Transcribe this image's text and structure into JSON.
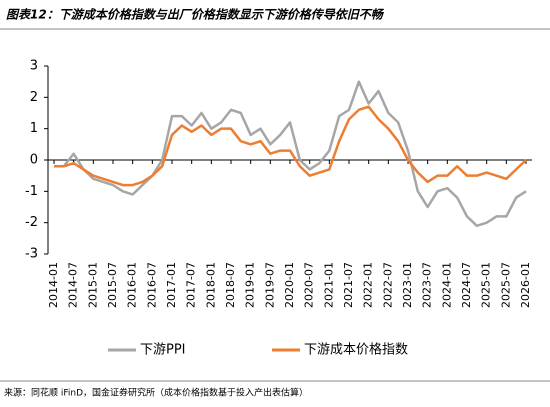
{
  "chart_data": {
    "type": "line",
    "title": "图表12：下游成本价格指数与出厂价格指数显示下游价格传导依旧不畅",
    "source": "来源：同花顺 iFinD，国金证券研究所（成本价格指数基于投入产出表估算）",
    "x": [
      "2014-01",
      "2014-04",
      "2014-07",
      "2014-10",
      "2015-01",
      "2015-04",
      "2015-07",
      "2015-10",
      "2016-01",
      "2016-04",
      "2016-07",
      "2016-10",
      "2017-01",
      "2017-04",
      "2017-07",
      "2017-10",
      "2018-01",
      "2018-04",
      "2018-07",
      "2018-10",
      "2019-01",
      "2019-04",
      "2019-07",
      "2019-10",
      "2020-01",
      "2020-04",
      "2020-07",
      "2020-10",
      "2021-01",
      "2021-04",
      "2021-07",
      "2021-10",
      "2022-01",
      "2022-04",
      "2022-07",
      "2022-10",
      "2023-01",
      "2023-04",
      "2023-07",
      "2023-10",
      "2024-01",
      "2024-04",
      "2024-07",
      "2024-10",
      "2025-01",
      "2025-04",
      "2025-07",
      "2025-10",
      "2026-01"
    ],
    "series": [
      {
        "name": "下游PPI",
        "color": "#a6a6a6",
        "values": [
          -0.2,
          -0.2,
          0.2,
          -0.3,
          -0.6,
          -0.7,
          -0.8,
          -1.0,
          -1.1,
          -0.8,
          -0.5,
          0.0,
          1.4,
          1.4,
          1.1,
          1.5,
          1.0,
          1.2,
          1.6,
          1.5,
          0.8,
          1.0,
          0.5,
          0.8,
          1.2,
          0.0,
          -0.3,
          -0.1,
          0.3,
          1.4,
          1.6,
          2.5,
          1.8,
          2.2,
          1.5,
          1.2,
          0.3,
          -1.0,
          -1.5,
          -1.0,
          -0.9,
          -1.2,
          -1.8,
          -2.1,
          -2.0,
          -1.8,
          -1.8,
          -1.2,
          -1.0
        ]
      },
      {
        "name": "下游成本价格指数",
        "color": "#ed7d31",
        "values": [
          -0.2,
          -0.2,
          -0.1,
          -0.3,
          -0.5,
          -0.6,
          -0.7,
          -0.8,
          -0.8,
          -0.7,
          -0.5,
          -0.2,
          0.8,
          1.1,
          0.9,
          1.1,
          0.8,
          1.0,
          1.0,
          0.6,
          0.5,
          0.6,
          0.2,
          0.3,
          0.3,
          -0.2,
          -0.5,
          -0.4,
          -0.3,
          0.6,
          1.3,
          1.6,
          1.7,
          1.3,
          1.0,
          0.6,
          0.0,
          -0.4,
          -0.7,
          -0.5,
          -0.5,
          -0.2,
          -0.5,
          -0.5,
          -0.4,
          -0.5,
          -0.6,
          -0.3,
          0.0
        ]
      }
    ],
    "xticks": [
      "2014-01",
      "2014-07",
      "2015-01",
      "2015-07",
      "2016-01",
      "2016-07",
      "2017-01",
      "2017-07",
      "2018-01",
      "2018-07",
      "2019-01",
      "2019-07",
      "2020-01",
      "2020-07",
      "2021-01",
      "2021-07",
      "2022-01",
      "2022-07",
      "2023-01",
      "2023-07",
      "2024-01",
      "2024-07",
      "2025-01",
      "2025-07",
      "2026-01"
    ],
    "ylim": [
      -3,
      3
    ],
    "yticks": [
      -3,
      -2,
      -1,
      0,
      1,
      2,
      3
    ]
  }
}
